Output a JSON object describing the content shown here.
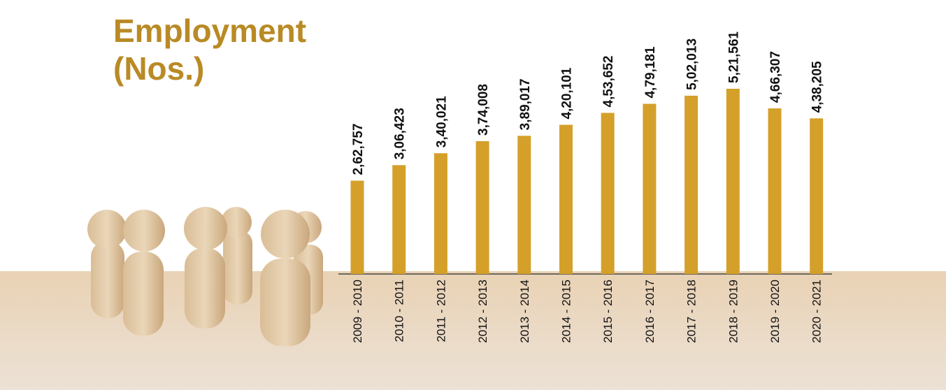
{
  "chart_data": {
    "type": "bar",
    "title": "Employment (Nos.)",
    "categories": [
      "2009 - 2010",
      "2010 - 2011",
      "2011 - 2012",
      "2012 - 2013",
      "2013 - 2014",
      "2014 - 2015",
      "2015 - 2016",
      "2016 - 2017",
      "2017 - 2018",
      "2018 - 2019",
      "2019 - 2020",
      "2020 - 2021"
    ],
    "values": [
      262757,
      306423,
      340021,
      374008,
      389017,
      420101,
      453652,
      479181,
      502013,
      521561,
      466307,
      438205
    ],
    "value_labels": [
      "2,62,757",
      "3,06,423",
      "3,40,021",
      "3,74,008",
      "3,89,017",
      "4,20,101",
      "4,53,652",
      "4,79,181",
      "5,02,013",
      "5,21,561",
      "4,66,307",
      "4,38,205"
    ],
    "color": "#d4a02a"
  }
}
